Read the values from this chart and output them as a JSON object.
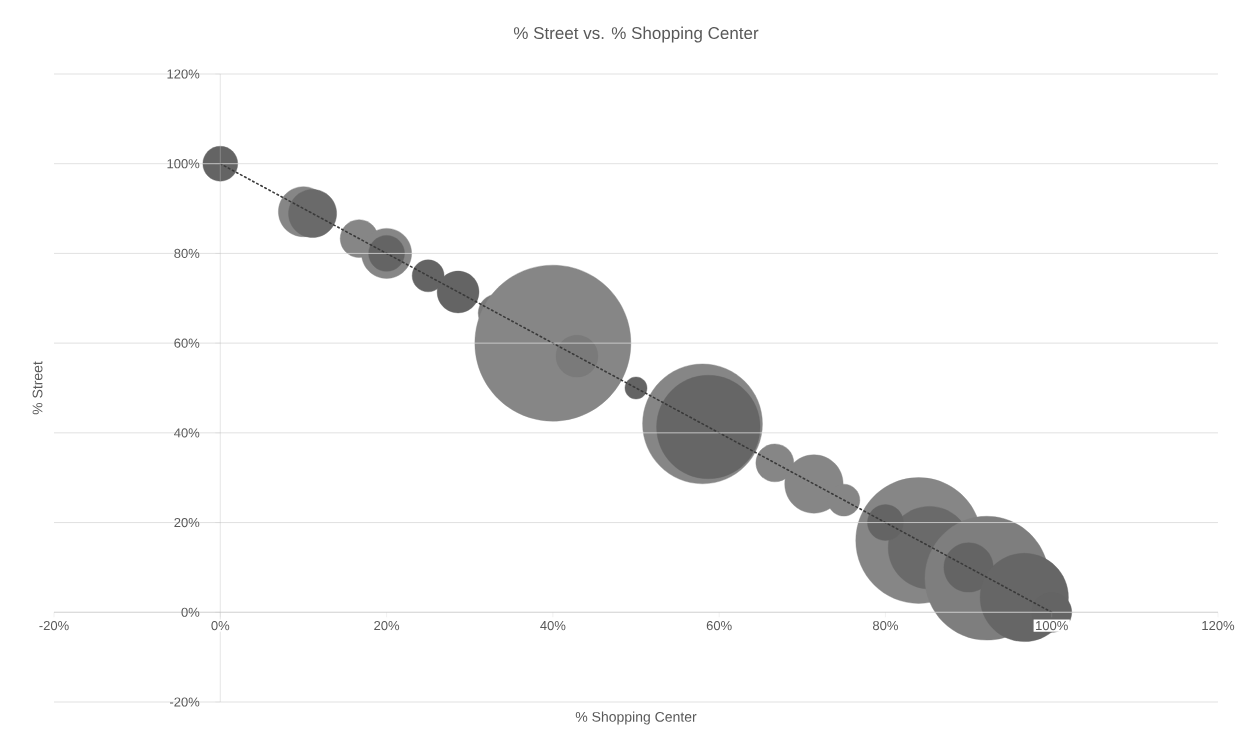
{
  "chart_data": {
    "type": "bubble",
    "title": "% Street vs. % Shopping Center",
    "xlabel": "% Shopping Center",
    "ylabel": "% Street",
    "xlim": [
      -20,
      120
    ],
    "ylim": [
      -20,
      120
    ],
    "xticks": [
      {
        "value": -20,
        "label": "-20%"
      },
      {
        "value": 0,
        "label": "0%"
      },
      {
        "value": 20,
        "label": "20%"
      },
      {
        "value": 40,
        "label": "40%"
      },
      {
        "value": 60,
        "label": "60%"
      },
      {
        "value": 80,
        "label": "80%"
      },
      {
        "value": 100,
        "label": "100%"
      },
      {
        "value": 120,
        "label": "120%"
      }
    ],
    "yticks": [
      {
        "value": -20,
        "label": "-20%"
      },
      {
        "value": 0,
        "label": "0%"
      },
      {
        "value": 20,
        "label": "20%"
      },
      {
        "value": 40,
        "label": "40%"
      },
      {
        "value": 60,
        "label": "60%"
      },
      {
        "value": 80,
        "label": "80%"
      },
      {
        "value": 100,
        "label": "100%"
      },
      {
        "value": 120,
        "label": "120%"
      }
    ],
    "grid": "y",
    "series": [
      {
        "x": [
          0,
          10,
          11.1,
          16.7,
          20,
          20,
          25,
          28.6,
          33.3,
          40,
          42.9,
          50,
          58,
          58.7,
          66.7,
          71.4,
          75,
          84,
          85.3,
          80,
          92.2,
          90,
          96.7,
          100
        ],
        "values": [
          100,
          89.3,
          88.9,
          83.3,
          80,
          80,
          75,
          71.4,
          66.7,
          60,
          57.1,
          50,
          42,
          41.3,
          33.3,
          28.6,
          25,
          16,
          14.4,
          20,
          7.6,
          10,
          3.3,
          0
        ],
        "sizes": [
          0.05,
          0.103,
          0.095,
          0.059,
          0.103,
          0.053,
          0.042,
          0.072,
          0.059,
          1,
          0.072,
          0.02,
          0.59,
          0.44,
          0.059,
          0.14,
          0.042,
          0.65,
          0.28,
          0.053,
          0.63,
          0.1,
          0.32,
          0.066
        ],
        "colors": [
          "#646464",
          "#868686",
          "#6a6a6a",
          "#868686",
          "#868686",
          "#646464",
          "#646464",
          "#646464",
          "#7a7a7a",
          "#868686",
          "#7a7a7a",
          "#646464",
          "#868686",
          "#666666",
          "#868686",
          "#868686",
          "#868686",
          "#868686",
          "#6a6a6a",
          "#646464",
          "#7e7e7e",
          "#646464",
          "#666666",
          "#646464"
        ]
      },
      {
        "type": "line",
        "x": [
          0,
          100
        ],
        "values": [
          100,
          0
        ],
        "color": "#3a3a3a",
        "line_style": "dotted",
        "marker": "none"
      }
    ]
  }
}
